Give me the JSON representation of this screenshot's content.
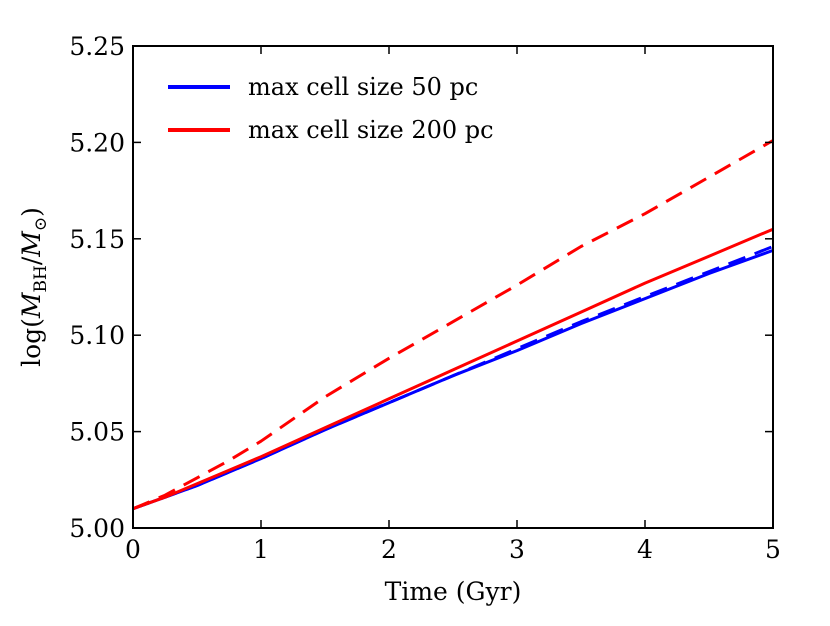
{
  "chart_data": {
    "type": "line",
    "title": "",
    "xlabel": "Time (Gyr)",
    "ylabel": {
      "prefix": "log(",
      "m1": "M",
      "sub1": "BH",
      "slash": "/",
      "m2": "M",
      "sub2": "⊙",
      "suffix": ")"
    },
    "xlim": [
      0,
      5
    ],
    "ylim": [
      5.0,
      5.25
    ],
    "xticks": [
      0,
      1,
      2,
      3,
      4,
      5
    ],
    "xtick_labels": [
      "0",
      "1",
      "2",
      "3",
      "4",
      "5"
    ],
    "yticks": [
      5.0,
      5.05,
      5.1,
      5.15,
      5.2,
      5.25
    ],
    "ytick_labels": [
      "5.00",
      "5.05",
      "5.10",
      "5.15",
      "5.20",
      "5.25"
    ],
    "legend_position": "top-left",
    "legend": [
      {
        "label": "max cell size 50 pc",
        "color": "#0000ff"
      },
      {
        "label": "max cell size 200 pc",
        "color": "#ff0000"
      }
    ],
    "series": [
      {
        "name": "50 pc solid",
        "color": "#0000ff",
        "style": "solid",
        "x": [
          0,
          0.25,
          0.5,
          0.75,
          1.0,
          1.5,
          2.0,
          2.5,
          3.0,
          3.5,
          4.0,
          4.5,
          5.0
        ],
        "y": [
          5.01,
          5.016,
          5.022,
          5.029,
          5.036,
          5.051,
          5.065,
          5.079,
          5.092,
          5.106,
          5.119,
          5.132,
          5.144
        ]
      },
      {
        "name": "50 pc dashed",
        "color": "#0000ff",
        "style": "dashed",
        "x": [
          0,
          0.25,
          0.5,
          0.75,
          1.0,
          1.5,
          2.0,
          2.5,
          3.0,
          3.5,
          4.0,
          4.5,
          5.0
        ],
        "y": [
          5.01,
          5.016,
          5.022,
          5.029,
          5.036,
          5.051,
          5.065,
          5.079,
          5.093,
          5.107,
          5.12,
          5.133,
          5.146
        ]
      },
      {
        "name": "200 pc solid",
        "color": "#ff0000",
        "style": "solid",
        "x": [
          0,
          0.25,
          0.5,
          0.75,
          1.0,
          1.5,
          2.0,
          2.5,
          3.0,
          3.5,
          4.0,
          4.5,
          5.0
        ],
        "y": [
          5.01,
          5.016,
          5.023,
          5.03,
          5.037,
          5.052,
          5.067,
          5.082,
          5.097,
          5.112,
          5.127,
          5.141,
          5.155
        ]
      },
      {
        "name": "200 pc dashed",
        "color": "#ff0000",
        "style": "dashed",
        "x": [
          0,
          0.25,
          0.5,
          0.75,
          1.0,
          1.5,
          2.0,
          2.5,
          3.0,
          3.5,
          4.0,
          4.5,
          5.0
        ],
        "y": [
          5.01,
          5.017,
          5.026,
          5.035,
          5.045,
          5.068,
          5.088,
          5.107,
          5.126,
          5.146,
          5.163,
          5.182,
          5.201
        ]
      }
    ]
  }
}
